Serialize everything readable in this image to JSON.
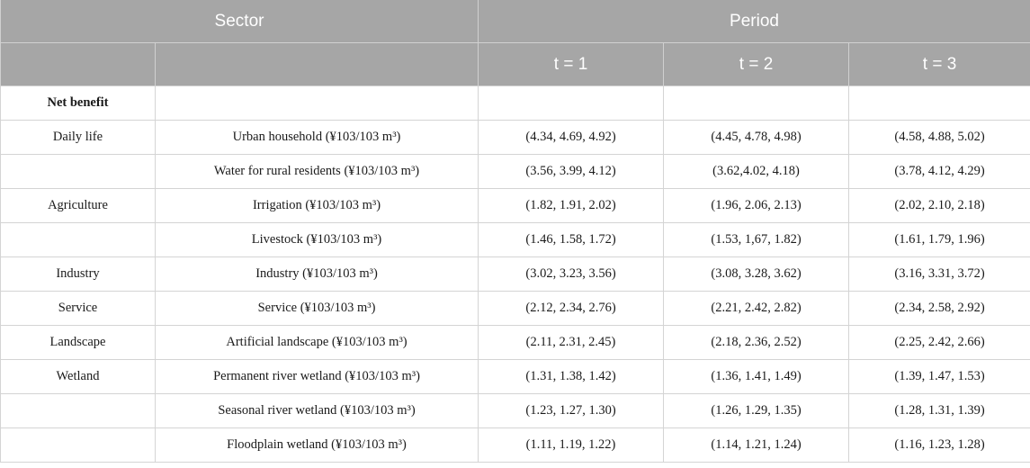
{
  "header": {
    "sector": "Sector",
    "period": "Period",
    "periods": [
      "t = 1",
      "t = 2",
      "t = 3"
    ]
  },
  "rows": [
    {
      "sector": "Net benefit",
      "item": "",
      "t1": "",
      "t2": "",
      "t3": ""
    },
    {
      "sector": "Daily life",
      "item": "Urban household (¥103/103 m³)",
      "t1": "(4.34, 4.69, 4.92)",
      "t2": "(4.45, 4.78, 4.98)",
      "t3": "(4.58, 4.88, 5.02)"
    },
    {
      "sector": "",
      "item": "Water for rural residents (¥103/103 m³)",
      "t1": "(3.56, 3.99, 4.12)",
      "t2": "(3.62,4.02, 4.18)",
      "t3": "(3.78, 4.12, 4.29)"
    },
    {
      "sector": "Agriculture",
      "item": "Irrigation (¥103/103 m³)",
      "t1": "(1.82, 1.91, 2.02)",
      "t2": "(1.96, 2.06, 2.13)",
      "t3": "(2.02, 2.10, 2.18)"
    },
    {
      "sector": "",
      "item": "Livestock (¥103/103 m³)",
      "t1": "(1.46, 1.58, 1.72)",
      "t2": "(1.53, 1,67, 1.82)",
      "t3": "(1.61, 1.79, 1.96)"
    },
    {
      "sector": "Industry",
      "item": "Industry (¥103/103 m³)",
      "t1": "(3.02, 3.23, 3.56)",
      "t2": "(3.08, 3.28, 3.62)",
      "t3": "(3.16, 3.31, 3.72)"
    },
    {
      "sector": "Service",
      "item": "Service (¥103/103 m³)",
      "t1": "(2.12, 2.34, 2.76)",
      "t2": "(2.21, 2.42, 2.82)",
      "t3": "(2.34, 2.58, 2.92)"
    },
    {
      "sector": "Landscape",
      "item": "Artificial landscape (¥103/103 m³)",
      "t1": "(2.11, 2.31, 2.45)",
      "t2": "(2.18, 2.36, 2.52)",
      "t3": "(2.25, 2.42, 2.66)"
    },
    {
      "sector": "Wetland",
      "item": "Permanent river wetland (¥103/103 m³)",
      "t1": "(1.31, 1.38, 1.42)",
      "t2": "(1.36, 1.41, 1.49)",
      "t3": "(1.39, 1.47, 1.53)"
    },
    {
      "sector": "",
      "item": "Seasonal river wetland (¥103/103 m³)",
      "t1": "(1.23, 1.27, 1.30)",
      "t2": "(1.26, 1.29, 1.35)",
      "t3": "(1.28, 1.31, 1.39)"
    },
    {
      "sector": "",
      "item": "Floodplain wetland (¥103/103 m³)",
      "t1": "(1.11, 1.19, 1.22)",
      "t2": "(1.14, 1.21, 1.24)",
      "t3": "(1.16, 1.23, 1.28)"
    }
  ]
}
